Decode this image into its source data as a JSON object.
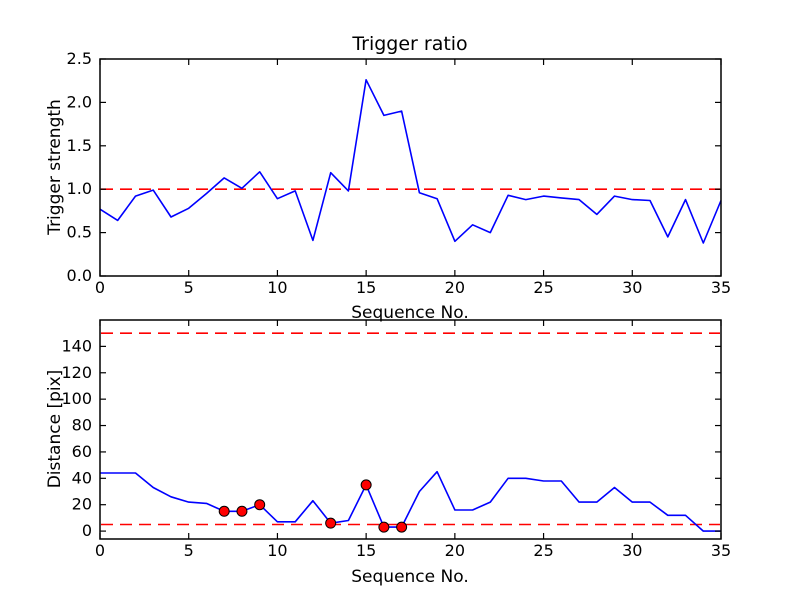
{
  "figure": {
    "background": "#ffffff",
    "line_color": "#0000ff",
    "threshold_color": "#ff0000",
    "marker_face_color": "#ff0000",
    "marker_edge_color": "#000000",
    "axis_color": "#000000"
  },
  "chart_data": [
    {
      "type": "line",
      "title": "Trigger ratio",
      "xlabel": "Sequence No.",
      "ylabel": "Trigger strength",
      "x": [
        0,
        1,
        2,
        3,
        4,
        5,
        6,
        7,
        8,
        9,
        10,
        11,
        12,
        13,
        14,
        15,
        16,
        17,
        18,
        19,
        20,
        21,
        22,
        23,
        24,
        25,
        26,
        27,
        28,
        29,
        30,
        31,
        32,
        33,
        34,
        35
      ],
      "values": [
        0.77,
        0.64,
        0.92,
        0.99,
        0.68,
        0.78,
        0.95,
        1.13,
        1.01,
        1.2,
        0.89,
        0.98,
        0.41,
        1.19,
        0.98,
        2.26,
        1.85,
        1.9,
        0.96,
        0.89,
        0.4,
        0.59,
        0.5,
        0.93,
        0.88,
        0.92,
        0.9,
        0.88,
        0.71,
        0.92,
        0.88,
        0.87,
        0.45,
        0.88,
        0.38,
        0.87
      ],
      "threshold_lines": [
        1.0
      ],
      "xlim": [
        0,
        35
      ],
      "ylim": [
        0,
        2.5
      ],
      "xticks": [
        0,
        5,
        10,
        15,
        20,
        25,
        30,
        35
      ],
      "xtick_labels": [
        "0",
        "5",
        "10",
        "15",
        "20",
        "25",
        "30",
        "35"
      ],
      "yticks": [
        0.0,
        0.5,
        1.0,
        1.5,
        2.0,
        2.5
      ],
      "ytick_labels": [
        "0.0",
        "0.5",
        "1.0",
        "1.5",
        "2.0",
        "2.5"
      ],
      "grid": "off",
      "legend": "none"
    },
    {
      "type": "line",
      "title": "",
      "xlabel": "Sequence No.",
      "ylabel": "Distance [pix]",
      "x": [
        0,
        1,
        2,
        3,
        4,
        5,
        6,
        7,
        8,
        9,
        10,
        11,
        12,
        13,
        14,
        15,
        16,
        17,
        18,
        19,
        20,
        21,
        22,
        23,
        24,
        25,
        26,
        27,
        28,
        29,
        30,
        31,
        32,
        33,
        34,
        35
      ],
      "values": [
        44,
        44,
        44,
        33,
        26,
        22,
        21,
        15,
        15,
        20,
        7,
        7,
        23,
        6,
        8,
        35,
        3,
        3,
        30,
        45,
        16,
        16,
        22,
        40,
        40,
        38,
        38,
        22,
        22,
        33,
        22,
        22,
        12,
        12,
        0,
        0
      ],
      "threshold_lines": [
        150,
        5
      ],
      "marker_x": [
        7,
        8,
        9,
        13,
        15,
        16,
        17
      ],
      "xlim": [
        0,
        35
      ],
      "ylim": [
        -6,
        160
      ],
      "xticks": [
        0,
        5,
        10,
        15,
        20,
        25,
        30,
        35
      ],
      "xtick_labels": [
        "0",
        "5",
        "10",
        "15",
        "20",
        "25",
        "30",
        "35"
      ],
      "yticks": [
        0,
        20,
        40,
        60,
        80,
        100,
        120,
        140
      ],
      "ytick_labels": [
        "0",
        "20",
        "40",
        "60",
        "80",
        "100",
        "120",
        "140"
      ],
      "grid": "off",
      "legend": "none"
    }
  ]
}
